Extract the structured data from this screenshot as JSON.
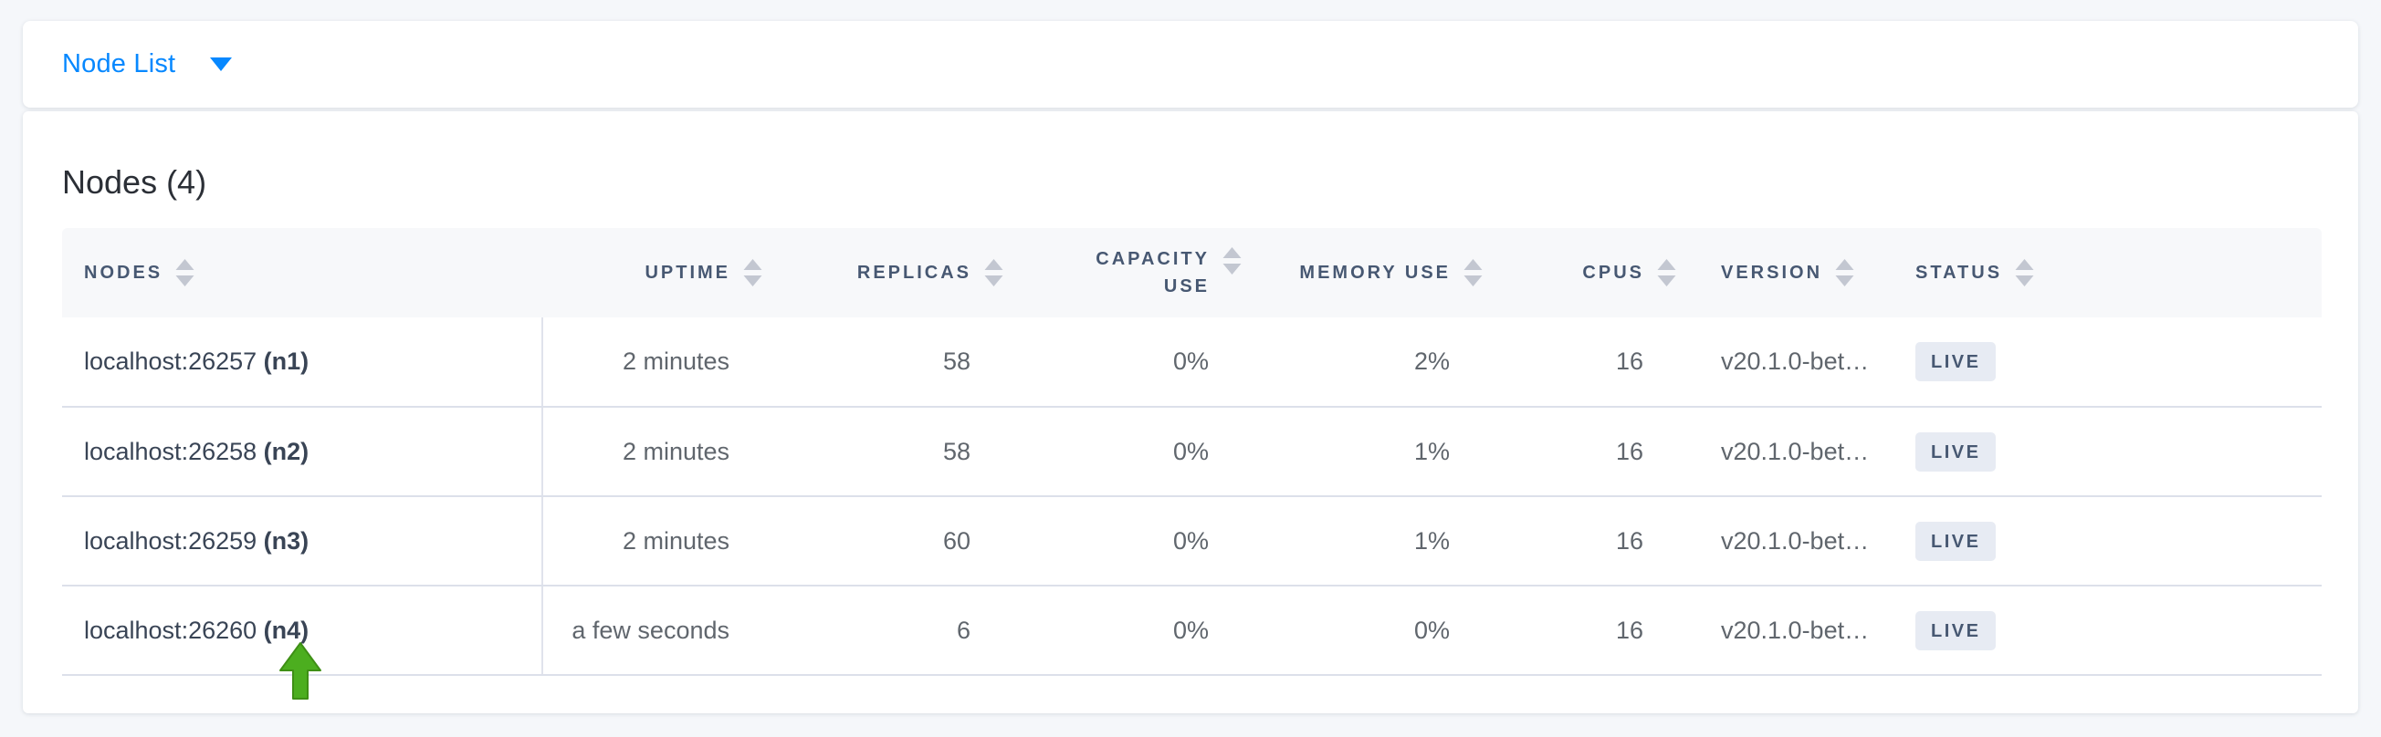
{
  "page": {
    "background_color": "#f5f7fa",
    "accent_blue": "#0788ff"
  },
  "view_bar": {
    "dropdown_label": "Node List",
    "dropdown_icon": "caret-down-icon"
  },
  "panel": {
    "title": "Nodes (4)"
  },
  "table": {
    "columns": [
      {
        "key": "nodes",
        "label": "NODES",
        "align": "left",
        "wrap": false,
        "sortable": true
      },
      {
        "key": "uptime",
        "label": "UPTIME",
        "align": "right",
        "wrap": false,
        "sortable": true
      },
      {
        "key": "replicas",
        "label": "REPLICAS",
        "align": "right",
        "wrap": false,
        "sortable": true
      },
      {
        "key": "capacity",
        "label": "CAPACITY USE",
        "align": "right",
        "wrap": true,
        "sortable": true
      },
      {
        "key": "memory",
        "label": "MEMORY USE",
        "align": "right",
        "wrap": false,
        "sortable": true
      },
      {
        "key": "cpus",
        "label": "CPUS",
        "align": "right",
        "wrap": false,
        "sortable": true
      },
      {
        "key": "version",
        "label": "VERSION",
        "align": "left",
        "wrap": false,
        "sortable": true
      },
      {
        "key": "status",
        "label": "STATUS",
        "align": "left",
        "wrap": false,
        "sortable": true
      }
    ],
    "rows": [
      {
        "address": "localhost:26257",
        "node_id": "(n1)",
        "uptime": "2 minutes",
        "replicas": "58",
        "capacity": "0%",
        "memory": "2%",
        "cpus": "16",
        "version": "v20.1.0-bet…",
        "status": "LIVE"
      },
      {
        "address": "localhost:26258",
        "node_id": "(n2)",
        "uptime": "2 minutes",
        "replicas": "58",
        "capacity": "0%",
        "memory": "1%",
        "cpus": "16",
        "version": "v20.1.0-bet…",
        "status": "LIVE"
      },
      {
        "address": "localhost:26259",
        "node_id": "(n3)",
        "uptime": "2 minutes",
        "replicas": "60",
        "capacity": "0%",
        "memory": "1%",
        "cpus": "16",
        "version": "v20.1.0-bet…",
        "status": "LIVE"
      },
      {
        "address": "localhost:26260",
        "node_id": "(n4)",
        "uptime": "a few seconds",
        "replicas": "6",
        "capacity": "0%",
        "memory": "0%",
        "cpus": "16",
        "version": "v20.1.0-bet…",
        "status": "LIVE"
      }
    ],
    "status_badge_bg": "#e7ebf3",
    "status_badge_text_color": "#475872"
  },
  "annotation": {
    "type": "arrow-up",
    "color": "#4cae1f",
    "outline_color": "#3e8f15"
  }
}
